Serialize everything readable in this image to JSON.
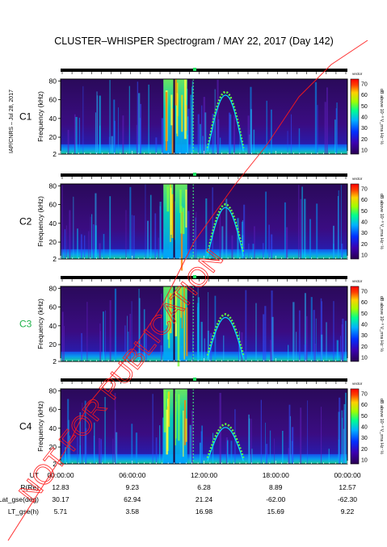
{
  "title": "CLUSTER–WHISPER Spectrogram / MAY 22, 2017 (Day 142)",
  "side_credit": "IAP/CNRS – Jul 28, 2017",
  "watermark": "NOT FOR PUBLICATION",
  "colorbar": {
    "label": "dB above 10⁻⁸ V_rms Hz⁻½",
    "top_tag": "vector",
    "ticks": [
      70,
      60,
      50,
      40,
      30,
      20,
      10
    ]
  },
  "chart_data": [
    {
      "type": "heatmap",
      "panel": "C1",
      "label_color": "#000000",
      "ylabel": "Frequency (kHz)",
      "y_ticks": [
        2,
        20,
        40,
        60,
        80
      ],
      "ylim": [
        2,
        82
      ],
      "x": [
        "00:00:00",
        "06:00:00",
        "12:00:00",
        "18:00:00",
        "00:00:00"
      ],
      "z_range": [
        10,
        70
      ]
    },
    {
      "type": "heatmap",
      "panel": "C2",
      "label_color": "#000000",
      "ylabel": "Frequency (kHz)",
      "y_ticks": [
        2,
        20,
        40,
        60,
        80
      ],
      "ylim": [
        2,
        82
      ],
      "x": [
        "00:00:00",
        "06:00:00",
        "12:00:00",
        "18:00:00",
        "00:00:00"
      ],
      "z_range": [
        10,
        70
      ]
    },
    {
      "type": "heatmap",
      "panel": "C3",
      "label_color": "#1fb24a",
      "ylabel": "Frequency (kHz)",
      "y_ticks": [
        2,
        20,
        40,
        60,
        80
      ],
      "ylim": [
        2,
        82
      ],
      "x": [
        "00:00:00",
        "06:00:00",
        "12:00:00",
        "18:00:00",
        "00:00:00"
      ],
      "z_range": [
        10,
        70
      ]
    },
    {
      "type": "heatmap",
      "panel": "C4",
      "label_color": "#000000",
      "ylabel": "Frequency (kHz)",
      "y_ticks": [
        2,
        20,
        40,
        60,
        80
      ],
      "ylim": [
        2,
        82
      ],
      "x": [
        "00:00:00",
        "06:00:00",
        "12:00:00",
        "18:00:00",
        "00:00:00"
      ],
      "z_range": [
        10,
        70
      ]
    }
  ],
  "orbit_table": {
    "rows": [
      {
        "label": "UT",
        "values": [
          "00:00:00",
          "06:00:00",
          "12:00:00",
          "18:00:00",
          "00:00:00"
        ]
      },
      {
        "label": "R(Re)",
        "values": [
          "12.83",
          "9.23",
          "6.28",
          "8.89",
          "12.57"
        ]
      },
      {
        "label": "Lat_gse(deg)",
        "values": [
          "30.17",
          "62.94",
          "21.24",
          "-62.00",
          "-62.30"
        ]
      },
      {
        "label": "LT_gse(h)",
        "values": [
          "5.71",
          "3.58",
          "16.98",
          "15.69",
          "9.22"
        ]
      }
    ]
  }
}
